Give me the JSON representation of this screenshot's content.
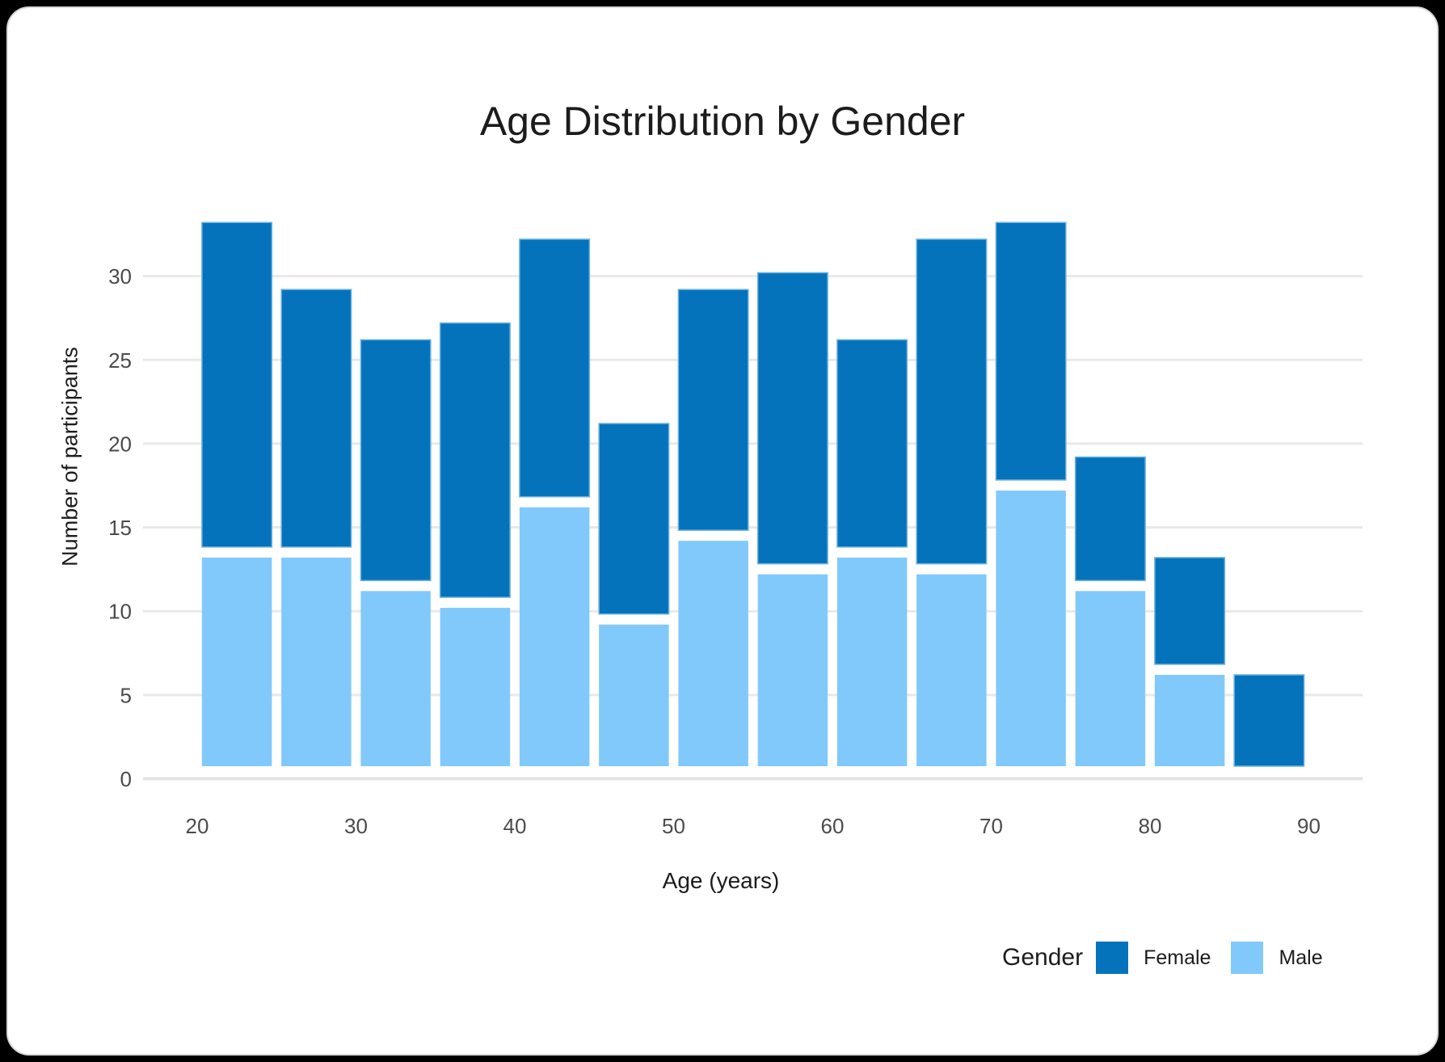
{
  "page": {
    "background": "#000000",
    "card_background": "#ffffff",
    "card_border": "#d9d9d9"
  },
  "chart_data": {
    "type": "bar",
    "subtype": "stacked-histogram",
    "title": "Age Distribution by Gender",
    "xlabel": "Age (years)",
    "ylabel": "Number of participants",
    "bin_width": 5,
    "xticks": [
      20,
      30,
      40,
      50,
      60,
      70,
      80,
      90
    ],
    "yticks": [
      0,
      5,
      10,
      15,
      20,
      25,
      30
    ],
    "x_range": [
      17.5,
      93.4
    ],
    "y_range": [
      0,
      34
    ],
    "grid": "horizontal",
    "legend_position": "bottom-right",
    "series_order_bottom_to_top": [
      "Male",
      "Female"
    ],
    "bins": [
      {
        "x0": 20,
        "x1": 25,
        "male": 13,
        "female": 20
      },
      {
        "x0": 25,
        "x1": 30,
        "male": 13,
        "female": 16
      },
      {
        "x0": 30,
        "x1": 35,
        "male": 11,
        "female": 15
      },
      {
        "x0": 35,
        "x1": 40,
        "male": 10,
        "female": 17
      },
      {
        "x0": 40,
        "x1": 45,
        "male": 16,
        "female": 16
      },
      {
        "x0": 45,
        "x1": 50,
        "male": 9,
        "female": 12
      },
      {
        "x0": 50,
        "x1": 55,
        "male": 14,
        "female": 15
      },
      {
        "x0": 55,
        "x1": 60,
        "male": 12,
        "female": 18
      },
      {
        "x0": 60,
        "x1": 65,
        "male": 13,
        "female": 13
      },
      {
        "x0": 65,
        "x1": 70,
        "male": 12,
        "female": 20
      },
      {
        "x0": 70,
        "x1": 75,
        "male": 17,
        "female": 16
      },
      {
        "x0": 75,
        "x1": 80,
        "male": 11,
        "female": 8
      },
      {
        "x0": 80,
        "x1": 85,
        "male": 6,
        "female": 7
      },
      {
        "x0": 85,
        "x1": 90,
        "male": 0,
        "female": 6
      }
    ]
  },
  "legend": {
    "title": "Gender",
    "items": [
      {
        "label": "Female",
        "color": "#0573bb"
      },
      {
        "label": "Male",
        "color": "#81c9fb"
      }
    ]
  },
  "colors": {
    "female": "#0573bb",
    "male": "#81c9fb",
    "female_edge": "#6fb4e0",
    "gridline": "#e9e9e9",
    "zeroline": "#e4e4e4",
    "tick_label": "#4b4b4b",
    "text": "#1c1c1c"
  }
}
